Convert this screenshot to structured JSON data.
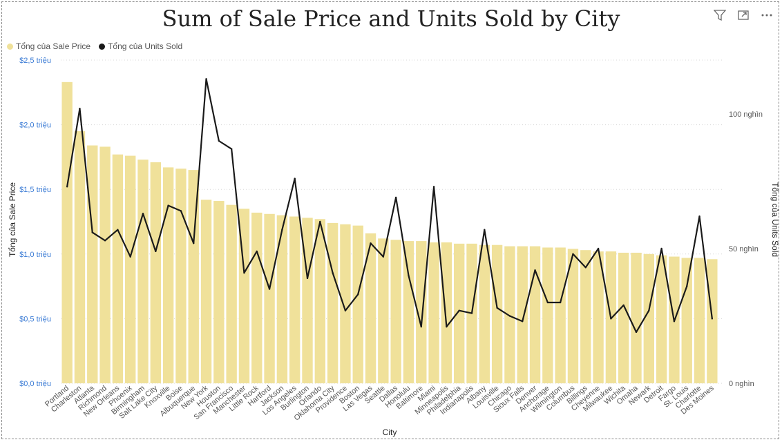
{
  "chart_data": {
    "type": "bar+line",
    "title": "Sum of Sale Price and Units Sold by City",
    "xlabel": "City",
    "ylabel": "Tổng của Sale Price",
    "y2label": "Tổng của Units Sold",
    "legend": [
      {
        "name": "Tổng của Sale Price",
        "color": "#f0e19a"
      },
      {
        "name": "Tổng của Units Sold",
        "color": "#1a1a1a"
      }
    ],
    "ylim": [
      0,
      2500000
    ],
    "y2lim": [
      0,
      100000
    ],
    "y_ticks": [
      "$0,0 triệu",
      "$0,5 triệu",
      "$1,0 triệu",
      "$1,5 triệu",
      "$2,0 triệu",
      "$2,5 triệu"
    ],
    "y2_ticks": [
      "0 nghìn",
      "50 nghìn",
      "100 nghìn"
    ],
    "categories": [
      "Portland",
      "Charleston",
      "Atlanta",
      "Richmond",
      "New Orleans",
      "Phoenix",
      "Birmingham",
      "Salt Lake City",
      "Knoxville",
      "Boise",
      "Albuquerque",
      "New York",
      "Houston",
      "San Francisco",
      "Manchester",
      "Little Rock",
      "Hartford",
      "Jackson",
      "Los Angeles",
      "Burlington",
      "Orlando",
      "Oklahoma City",
      "Providence",
      "Boston",
      "Las Vegas",
      "Seattle",
      "Dallas",
      "Honolulu",
      "Baltimore",
      "Miami",
      "Minneapolis",
      "Philadelphia",
      "Indianapolis",
      "Albany",
      "Louisville",
      "Chicago",
      "Sioux Falls",
      "Denver",
      "Anchorage",
      "Wilmington",
      "Columbus",
      "Billings",
      "Cheyenne",
      "Milwaukee",
      "Wichita",
      "Omaha",
      "Newark",
      "Detroit",
      "Fargo",
      "St. Louis",
      "Charlotte",
      "Des Moines"
    ],
    "series": [
      {
        "name": "Tổng của Sale Price",
        "type": "bar",
        "color": "#f0e19a",
        "values": [
          2330000,
          1950000,
          1840000,
          1830000,
          1770000,
          1760000,
          1730000,
          1710000,
          1670000,
          1660000,
          1650000,
          1420000,
          1410000,
          1380000,
          1350000,
          1320000,
          1310000,
          1300000,
          1290000,
          1280000,
          1270000,
          1240000,
          1230000,
          1220000,
          1160000,
          1120000,
          1110000,
          1100000,
          1100000,
          1090000,
          1090000,
          1080000,
          1080000,
          1070000,
          1070000,
          1060000,
          1060000,
          1060000,
          1050000,
          1050000,
          1040000,
          1030000,
          1020000,
          1020000,
          1010000,
          1010000,
          1000000,
          990000,
          980000,
          970000,
          970000,
          960000
        ]
      },
      {
        "name": "Tổng của Units Sold",
        "type": "line",
        "color": "#1a1a1a",
        "values": [
          73000,
          102000,
          56000,
          53000,
          57000,
          47000,
          63000,
          49000,
          66000,
          64000,
          52000,
          113000,
          90000,
          87000,
          41000,
          49000,
          35000,
          57000,
          76000,
          39000,
          60000,
          41000,
          27000,
          33000,
          52000,
          47000,
          69000,
          40000,
          21000,
          73000,
          21000,
          27000,
          26000,
          57000,
          28000,
          25000,
          23000,
          42000,
          30000,
          30000,
          48000,
          43000,
          50000,
          24000,
          29000,
          19000,
          27000,
          50000,
          23000,
          36000,
          62000,
          24000
        ]
      }
    ],
    "grid": true,
    "legend_position": "top-left"
  },
  "toolbar": {
    "icons": [
      "filter-icon",
      "focus-mode-icon",
      "more-options-icon"
    ]
  }
}
